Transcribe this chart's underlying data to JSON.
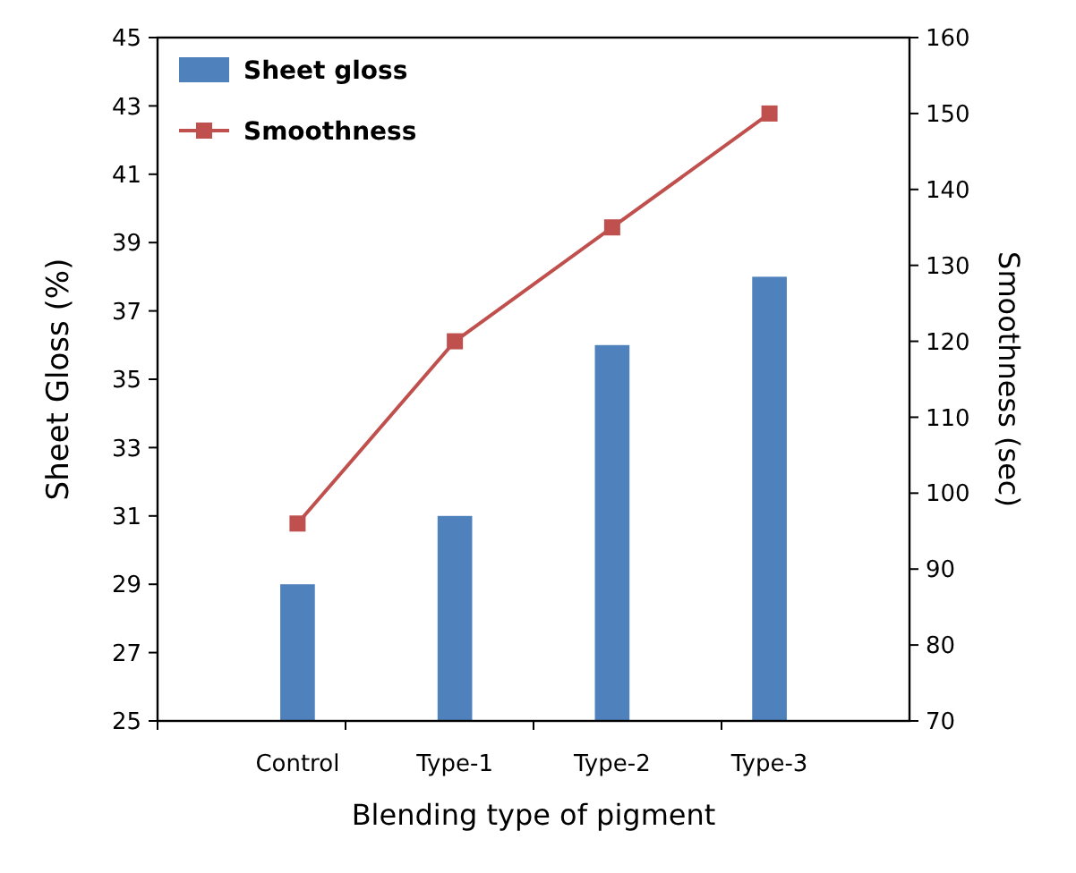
{
  "chart_data": {
    "type": "bar",
    "xlabel": "Blending type of pigment",
    "ylabel": "Sheet Gloss (%)",
    "y2label": "Smoothness (sec)",
    "categories": [
      "Control",
      "Type-1",
      "Type-2",
      "Type-3"
    ],
    "series": [
      {
        "name": "Sheet gloss",
        "color": "#4f81bd",
        "values": [
          29,
          31,
          36,
          38
        ]
      },
      {
        "name": "Smoothness",
        "type": "line",
        "axis": "y2",
        "color": "#c0504d",
        "marker": "square",
        "values": [
          96,
          120,
          135,
          150
        ]
      }
    ],
    "ylim": [
      25,
      45
    ],
    "yticks": [
      25,
      27,
      29,
      31,
      33,
      35,
      37,
      39,
      41,
      43,
      45
    ],
    "y2lim": [
      70,
      160
    ],
    "y2ticks": [
      70,
      80,
      90,
      100,
      110,
      120,
      130,
      140,
      150,
      160
    ],
    "legend": "top left",
    "grid": false
  }
}
